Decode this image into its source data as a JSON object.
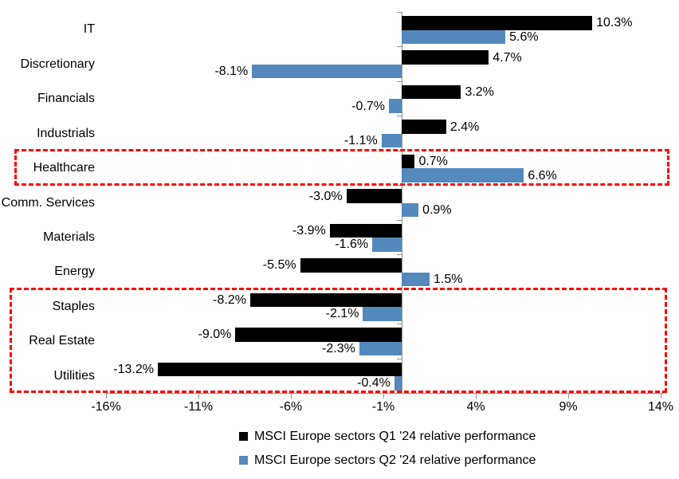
{
  "chart_data": {
    "type": "bar",
    "orientation": "horizontal",
    "title": "",
    "grid": false,
    "categories": [
      "IT",
      "Discretionary",
      "Financials",
      "Industrials",
      "Healthcare",
      "Comm. Services",
      "Materials",
      "Energy",
      "Staples",
      "Real Estate",
      "Utilities"
    ],
    "series": [
      {
        "name": "MSCI Europe sectors Q1 '24 relative performance",
        "color": "#000000",
        "values": [
          10.3,
          4.7,
          3.2,
          2.4,
          0.7,
          -3.0,
          -3.9,
          -5.5,
          -8.2,
          -9.0,
          -13.2
        ],
        "labels": [
          "10.3%",
          "4.7%",
          "3.2%",
          "2.4%",
          "0.7%",
          "-3.0%",
          "-3.9%",
          "-5.5%",
          "-8.2%",
          "-9.0%",
          "-13.2%"
        ]
      },
      {
        "name": "MSCI Europe sectors Q2 '24 relative performance",
        "color": "#5389BD",
        "values": [
          5.6,
          -8.1,
          -0.7,
          -1.1,
          6.6,
          0.9,
          -1.6,
          1.5,
          -2.1,
          -2.3,
          -0.4
        ],
        "labels": [
          "5.6%",
          "-8.1%",
          "-0.7%",
          "-1.1%",
          "6.6%",
          "0.9%",
          "-1.6%",
          "1.5%",
          "-2.1%",
          "-2.3%",
          "-0.4%"
        ]
      }
    ],
    "x_axis": {
      "min": -16,
      "max": 14,
      "tick_values": [
        -16,
        -11,
        -6,
        -1,
        4,
        9,
        14
      ],
      "tick_labels": [
        "-16%",
        "-11%",
        "-6%",
        "-1%",
        "4%",
        "9%",
        "14%"
      ]
    },
    "legend": {
      "position": "bottom"
    },
    "highlights": [
      {
        "name": "healthcare-highlight-box",
        "categories": [
          "Healthcare"
        ],
        "start_index": 4,
        "end_index": 4,
        "color": "#FF0000",
        "style": "dashed"
      },
      {
        "name": "defensives-highlight-box",
        "categories": [
          "Staples",
          "Real Estate",
          "Utilities"
        ],
        "start_index": 8,
        "end_index": 10,
        "color": "#FF0000",
        "style": "dashed"
      }
    ],
    "axis_color": "#909090"
  }
}
